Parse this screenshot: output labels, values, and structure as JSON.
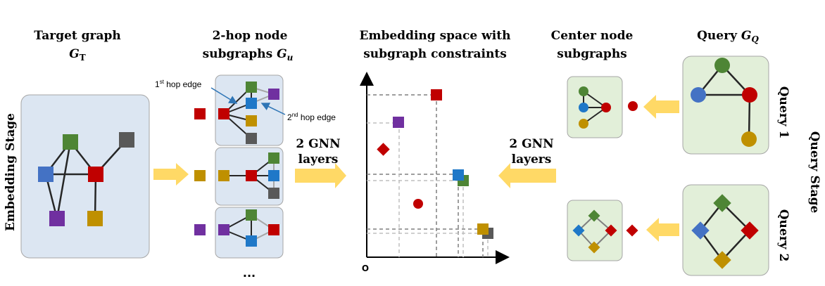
{
  "titles": {
    "target_graph": "Target graph",
    "target_graph_sym": "G",
    "target_graph_sub": "T",
    "two_hop_line1": "2-hop node",
    "two_hop_line2": "subgraphs ",
    "two_hop_sym": "G",
    "two_hop_sub": "u",
    "embedding_line1": "Embedding space with",
    "embedding_line2": "subgraph constraints",
    "center_line1": "Center node",
    "center_line2": "subgraphs",
    "query_title": "Query ",
    "query_sym": "G",
    "query_sub": "Q"
  },
  "stage_labels": {
    "embedding_stage": "Embedding Stage",
    "query_stage": "Query Stage",
    "query1": "Query 1",
    "query2": "Query 2"
  },
  "annotations": {
    "first_hop_prefix": "1",
    "first_hop_sup": "st",
    "first_hop_suffix": " hop edge",
    "second_hop_prefix": "2",
    "second_hop_sup": "nd",
    "second_hop_suffix": " hop edge"
  },
  "arrows": {
    "left_line1": "2 GNN",
    "left_line2": "layers",
    "right_line1": "2 GNN",
    "right_line2": "layers"
  },
  "axis": {
    "origin": "O"
  },
  "ellipsis": "...",
  "colors": {
    "green": "#4e8535",
    "blue": "#4472c4",
    "blue2": "#1f78c8",
    "red": "#c00000",
    "purple": "#7030a0",
    "gold": "#bf9000",
    "gray": "#595959",
    "panel_blue": "#dce6f2",
    "panel_green": "#e2efd9",
    "arrow": "#ffd966"
  }
}
